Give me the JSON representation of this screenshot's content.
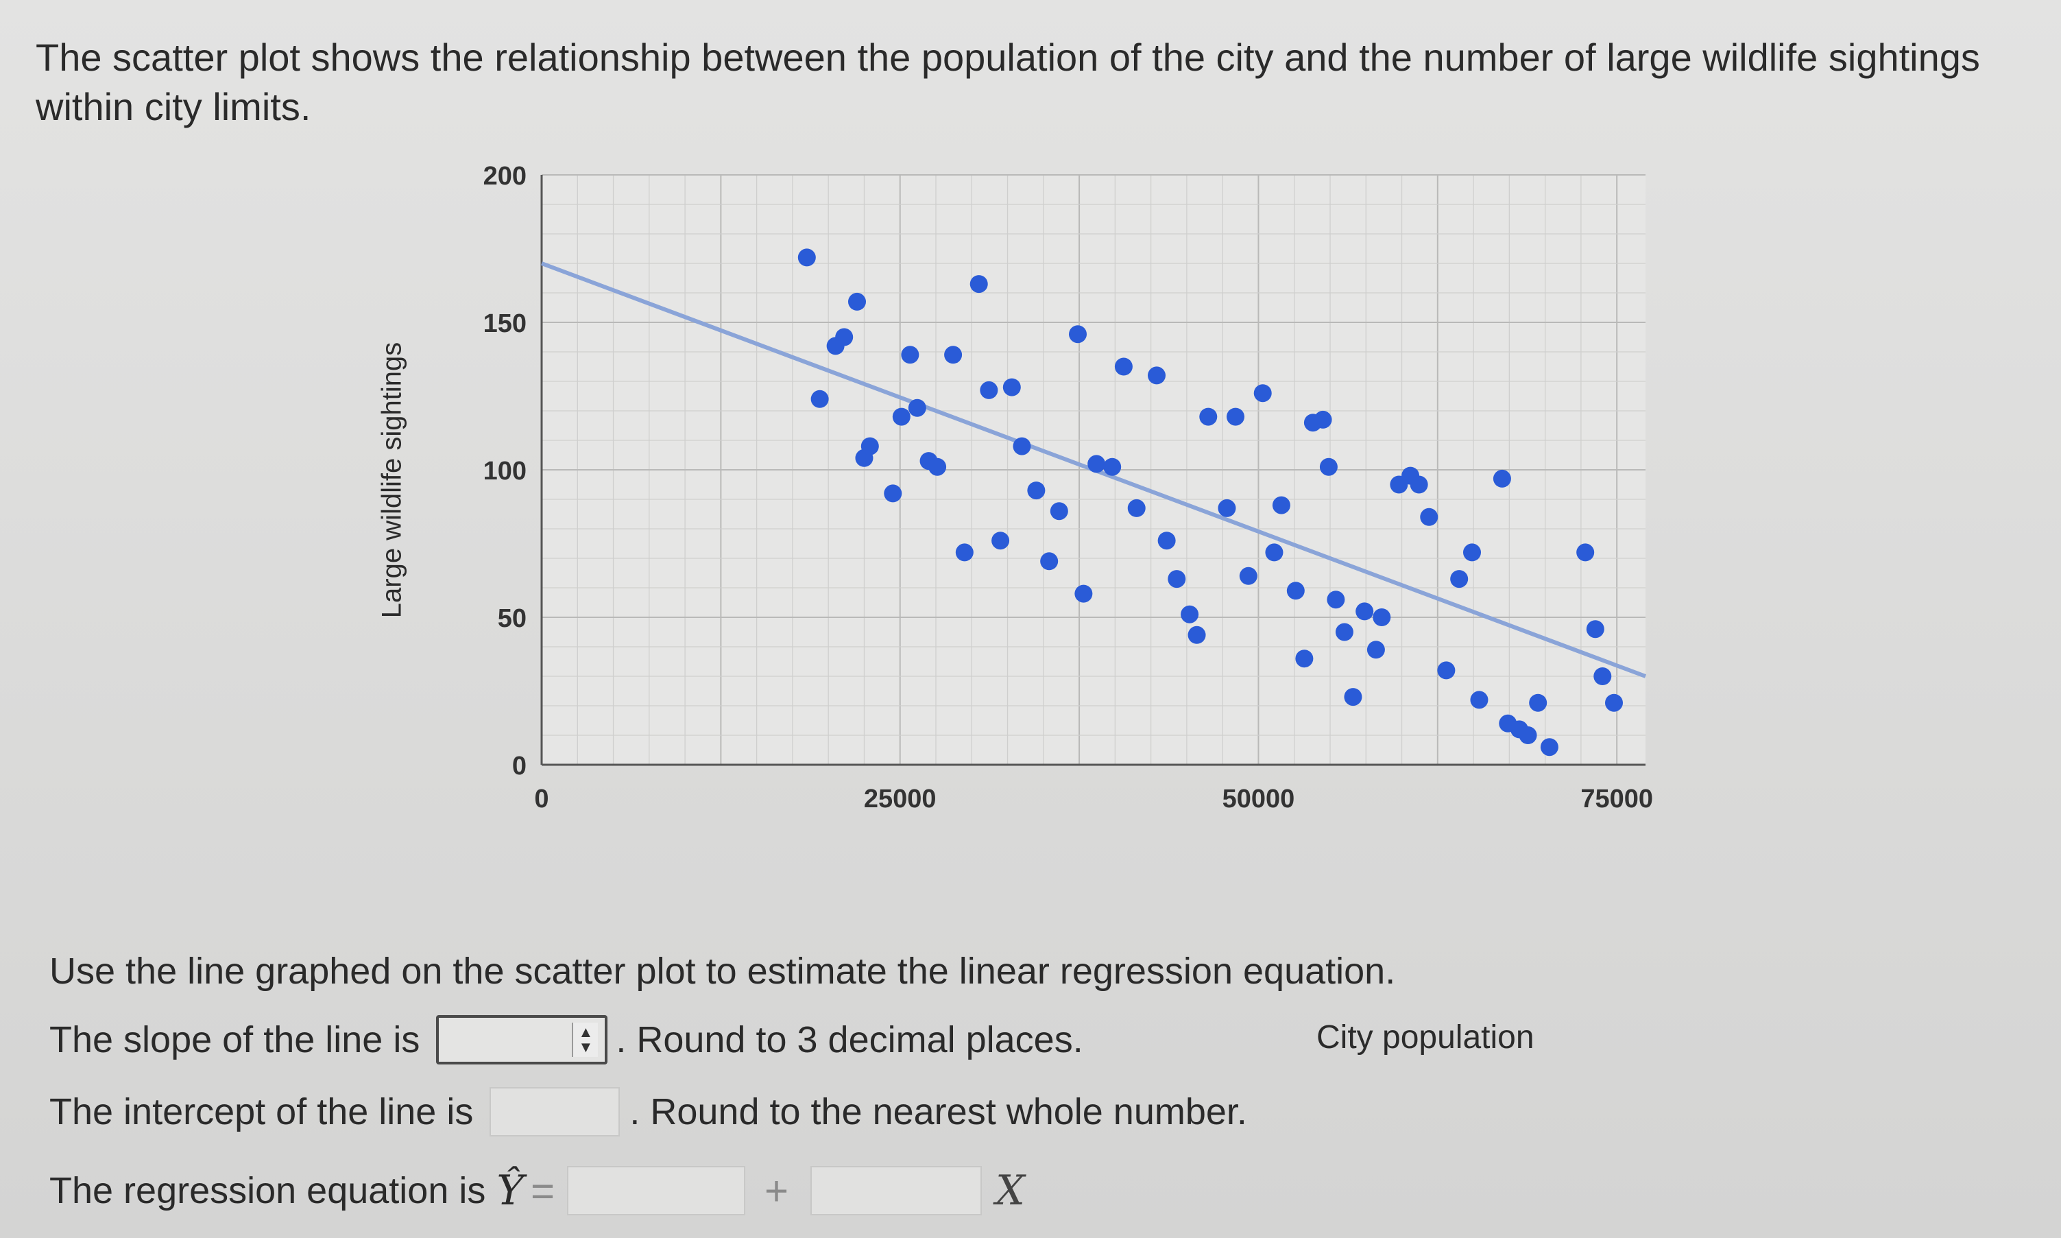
{
  "prompt": {
    "line1": "The scatter plot shows the relationship between the population of the city and the number of large wildlife sightings",
    "line2": "within city limits."
  },
  "chart_data": {
    "type": "scatter",
    "xlabel": "City population",
    "ylabel": "Large wildlife sightings",
    "xlim": [
      0,
      77000
    ],
    "ylim": [
      0,
      200
    ],
    "x_ticks": [
      "0",
      "25000",
      "50000",
      "75000"
    ],
    "y_ticks": [
      "0",
      "50",
      "100",
      "150",
      "200"
    ],
    "grid": true,
    "regression_line": {
      "x": [
        0,
        77000
      ],
      "y": [
        170,
        30
      ]
    },
    "colors": {
      "points": "#2a5bd7",
      "line": "#8aa4d8"
    },
    "points": [
      [
        18500,
        172
      ],
      [
        19400,
        124
      ],
      [
        20500,
        142
      ],
      [
        21100,
        145
      ],
      [
        22000,
        157
      ],
      [
        22500,
        104
      ],
      [
        22900,
        108
      ],
      [
        24500,
        92
      ],
      [
        25100,
        118
      ],
      [
        25700,
        139
      ],
      [
        26200,
        121
      ],
      [
        27000,
        103
      ],
      [
        27600,
        101
      ],
      [
        28700,
        139
      ],
      [
        29500,
        72
      ],
      [
        30500,
        163
      ],
      [
        31200,
        127
      ],
      [
        32000,
        76
      ],
      [
        32800,
        128
      ],
      [
        33500,
        108
      ],
      [
        34500,
        93
      ],
      [
        35400,
        69
      ],
      [
        36100,
        86
      ],
      [
        37400,
        146
      ],
      [
        37800,
        58
      ],
      [
        38700,
        102
      ],
      [
        39800,
        101
      ],
      [
        40600,
        135
      ],
      [
        41500,
        87
      ],
      [
        42900,
        132
      ],
      [
        43600,
        76
      ],
      [
        44300,
        63
      ],
      [
        45200,
        51
      ],
      [
        45700,
        44
      ],
      [
        46500,
        118
      ],
      [
        47800,
        87
      ],
      [
        48400,
        118
      ],
      [
        49300,
        64
      ],
      [
        50300,
        126
      ],
      [
        51100,
        72
      ],
      [
        51600,
        88
      ],
      [
        52600,
        59
      ],
      [
        53200,
        36
      ],
      [
        53800,
        116
      ],
      [
        54500,
        117
      ],
      [
        54900,
        101
      ],
      [
        55400,
        56
      ],
      [
        56000,
        45
      ],
      [
        56600,
        23
      ],
      [
        57400,
        52
      ],
      [
        58200,
        39
      ],
      [
        58600,
        50
      ],
      [
        59800,
        95
      ],
      [
        60600,
        98
      ],
      [
        61200,
        95
      ],
      [
        61900,
        84
      ],
      [
        63100,
        32
      ],
      [
        64000,
        63
      ],
      [
        64900,
        72
      ],
      [
        65400,
        22
      ],
      [
        67000,
        97
      ],
      [
        67400,
        14
      ],
      [
        68200,
        12
      ],
      [
        68800,
        10
      ],
      [
        69500,
        21
      ],
      [
        70300,
        6
      ],
      [
        72800,
        72
      ],
      [
        73500,
        46
      ],
      [
        74000,
        30
      ],
      [
        74800,
        21
      ]
    ]
  },
  "instructions": "Use the line graphed on the scatter plot to estimate the linear regression equation.",
  "slope": {
    "before": "The slope of the line is",
    "after": ". Round to 3 decimal places.",
    "value": ""
  },
  "intercept": {
    "before": "The intercept of the line is",
    "after": ". Round to the nearest whole number.",
    "value": ""
  },
  "equation": {
    "before": "The regression equation is",
    "yhat": "Ŷ",
    "equals": "=",
    "plus": "+",
    "xvar": "X",
    "intercept_value": "",
    "slope_value": ""
  }
}
